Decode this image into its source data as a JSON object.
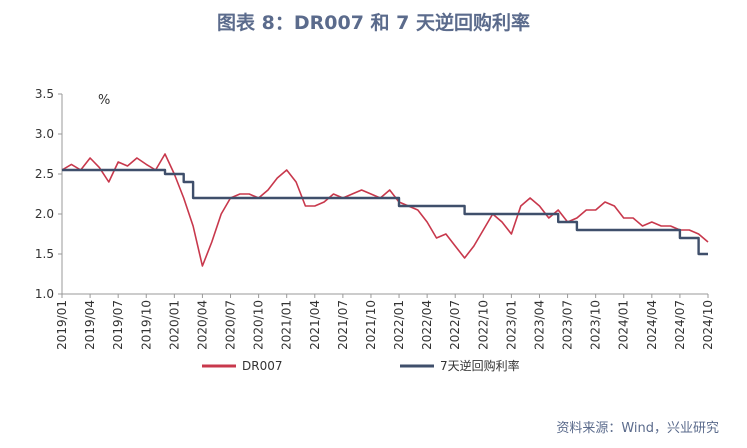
{
  "chart_data": {
    "type": "line",
    "title": "图表 8：DR007 和 7 天逆回购利率",
    "unit_label": "%",
    "source": "资料来源：Wind，兴业研究",
    "ylim": [
      1.0,
      3.5
    ],
    "yticks": [
      "3.5",
      "3.0",
      "2.5",
      "2.0",
      "1.5",
      "1.0"
    ],
    "xlim": [
      "2019/01",
      "2024/10"
    ],
    "xticks": [
      "2019/01",
      "2019/04",
      "2019/07",
      "2019/10",
      "2020/01",
      "2020/04",
      "2020/07",
      "2020/10",
      "2021/01",
      "2021/04",
      "2021/07",
      "2021/10",
      "2022/01",
      "2022/04",
      "2022/07",
      "2022/10",
      "2023/01",
      "2023/04",
      "2023/07",
      "2023/10",
      "2024/01",
      "2024/04",
      "2024/07",
      "2024/10"
    ],
    "colors": {
      "dr007": "#c8384c",
      "repo": "#3f4f6b",
      "text": "#5b6b8c"
    },
    "series": [
      {
        "name": "DR007",
        "x": [
          "2019/01",
          "2019/02",
          "2019/03",
          "2019/04",
          "2019/05",
          "2019/06",
          "2019/07",
          "2019/08",
          "2019/09",
          "2019/10",
          "2019/11",
          "2019/12",
          "2020/01",
          "2020/02",
          "2020/03",
          "2020/04",
          "2020/05",
          "2020/06",
          "2020/07",
          "2020/08",
          "2020/09",
          "2020/10",
          "2020/11",
          "2020/12",
          "2021/01",
          "2021/02",
          "2021/03",
          "2021/04",
          "2021/05",
          "2021/06",
          "2021/07",
          "2021/08",
          "2021/09",
          "2021/10",
          "2021/11",
          "2021/12",
          "2022/01",
          "2022/02",
          "2022/03",
          "2022/04",
          "2022/05",
          "2022/06",
          "2022/07",
          "2022/08",
          "2022/09",
          "2022/10",
          "2022/11",
          "2022/12",
          "2023/01",
          "2023/02",
          "2023/03",
          "2023/04",
          "2023/05",
          "2023/06",
          "2023/07",
          "2023/08",
          "2023/09",
          "2023/10",
          "2023/11",
          "2023/12",
          "2024/01",
          "2024/02",
          "2024/03",
          "2024/04",
          "2024/05",
          "2024/06",
          "2024/07",
          "2024/08",
          "2024/09",
          "2024/10"
        ],
        "values": [
          2.55,
          2.62,
          2.55,
          2.7,
          2.58,
          2.4,
          2.65,
          2.6,
          2.7,
          2.62,
          2.55,
          2.75,
          2.5,
          2.2,
          1.85,
          1.35,
          1.65,
          2.0,
          2.2,
          2.25,
          2.25,
          2.2,
          2.3,
          2.45,
          2.55,
          2.4,
          2.1,
          2.1,
          2.15,
          2.25,
          2.2,
          2.25,
          2.3,
          2.25,
          2.2,
          2.3,
          2.15,
          2.1,
          2.05,
          1.9,
          1.7,
          1.75,
          1.6,
          1.45,
          1.6,
          1.8,
          2.0,
          1.9,
          1.75,
          2.1,
          2.2,
          2.1,
          1.95,
          2.05,
          1.9,
          1.95,
          2.05,
          2.05,
          2.15,
          2.1,
          1.95,
          1.95,
          1.85,
          1.9,
          1.85,
          1.85,
          1.8,
          1.8,
          1.75,
          1.65
        ]
      },
      {
        "name": "7天逆回购利率",
        "x": [
          "2019/01",
          "2019/12",
          "2019/12",
          "2020/02",
          "2020/02",
          "2020/03",
          "2020/03",
          "2022/01",
          "2022/01",
          "2022/08",
          "2022/08",
          "2023/06",
          "2023/06",
          "2023/08",
          "2023/08",
          "2024/07",
          "2024/07",
          "2024/09",
          "2024/09",
          "2024/10"
        ],
        "values": [
          2.55,
          2.55,
          2.5,
          2.5,
          2.4,
          2.4,
          2.2,
          2.2,
          2.1,
          2.1,
          2.0,
          2.0,
          1.9,
          1.9,
          1.8,
          1.8,
          1.7,
          1.7,
          1.5,
          1.5
        ]
      }
    ],
    "legend": {
      "position": "bottom",
      "entries": [
        "DR007",
        "7天逆回购利率"
      ]
    }
  }
}
